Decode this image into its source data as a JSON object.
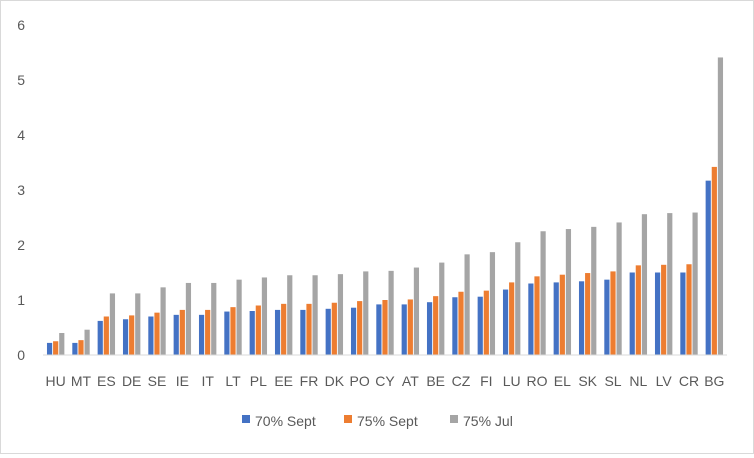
{
  "chart_data": {
    "type": "bar",
    "categories": [
      "HU",
      "MT",
      "ES",
      "DE",
      "SE",
      "IE",
      "IT",
      "LT",
      "PL",
      "EE",
      "FR",
      "DK",
      "PO",
      "CY",
      "AT",
      "BE",
      "CZ",
      "FI",
      "LU",
      "RO",
      "EL",
      "SK",
      "SL",
      "NL",
      "LV",
      "CR",
      "BG"
    ],
    "series": [
      {
        "name": "70% Sept",
        "color": "#4472c4",
        "values": [
          0.22,
          0.22,
          0.62,
          0.65,
          0.7,
          0.73,
          0.73,
          0.79,
          0.8,
          0.82,
          0.82,
          0.84,
          0.86,
          0.92,
          0.92,
          0.96,
          1.05,
          1.06,
          1.19,
          1.3,
          1.32,
          1.34,
          1.37,
          1.5,
          1.5,
          1.5,
          3.17
        ]
      },
      {
        "name": "75% Sept",
        "color": "#ed7d31",
        "values": [
          0.25,
          0.27,
          0.7,
          0.72,
          0.77,
          0.82,
          0.82,
          0.87,
          0.9,
          0.93,
          0.93,
          0.95,
          0.98,
          1.0,
          1.01,
          1.07,
          1.15,
          1.17,
          1.32,
          1.43,
          1.46,
          1.49,
          1.52,
          1.63,
          1.64,
          1.65,
          3.42
        ]
      },
      {
        "name": "75% Jul",
        "color": "#a5a5a5",
        "values": [
          0.4,
          0.46,
          1.12,
          1.12,
          1.23,
          1.31,
          1.31,
          1.37,
          1.41,
          1.45,
          1.45,
          1.47,
          1.52,
          1.53,
          1.59,
          1.68,
          1.83,
          1.87,
          2.05,
          2.25,
          2.29,
          2.33,
          2.41,
          2.56,
          2.58,
          2.59,
          5.41
        ]
      }
    ],
    "ylim": [
      0,
      6
    ],
    "yticks": [
      0,
      1,
      2,
      3,
      4,
      5,
      6
    ],
    "grid": false,
    "legend_position": "bottom"
  }
}
